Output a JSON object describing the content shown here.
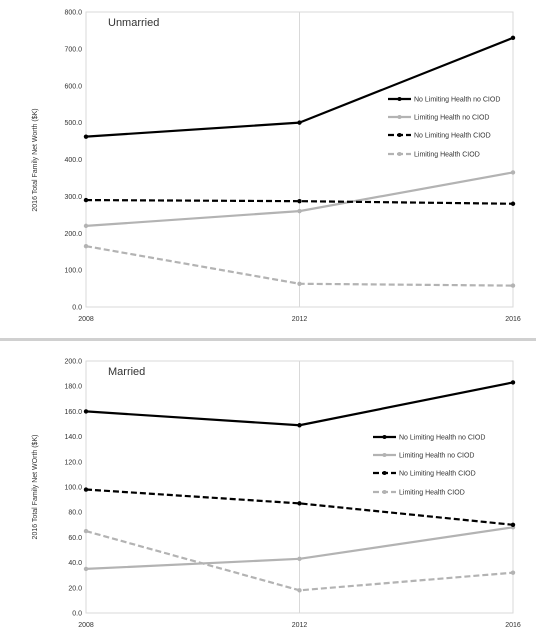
{
  "chart_data": [
    {
      "type": "line",
      "title": "Unmarried",
      "ylabel": "2016 Total Family Net Worth ($K)",
      "x": [
        "2008",
        "2012",
        "2016"
      ],
      "ylim": [
        0,
        800
      ],
      "yticks": [
        "0.0",
        "100.0",
        "200.0",
        "300.0",
        "400.0",
        "500.0",
        "600.0",
        "700.0",
        "800.0"
      ],
      "grid": "vertical",
      "legend": "right",
      "series": [
        {
          "name": "No Limiting Health no CIOD",
          "values": [
            462,
            500,
            730
          ],
          "color": "#000000",
          "dashed": false
        },
        {
          "name": "Limiting Health no CIOD",
          "values": [
            220,
            260,
            365
          ],
          "color": "#b3b3b3",
          "dashed": false
        },
        {
          "name": "No Limiting Health CIOD",
          "values": [
            290,
            287,
            280
          ],
          "color": "#000000",
          "dashed": true
        },
        {
          "name": "Limiting Health CIOD",
          "values": [
            165,
            63,
            58
          ],
          "color": "#b3b3b3",
          "dashed": true
        }
      ]
    },
    {
      "type": "line",
      "title": "Married",
      "ylabel": "2016 Total Family Net WOrth ($K)",
      "x": [
        "2008",
        "2012",
        "2016"
      ],
      "ylim": [
        0,
        200
      ],
      "yticks": [
        "0.0",
        "20.0",
        "40.0",
        "60.0",
        "80.0",
        "100.0",
        "120.0",
        "140.0",
        "160.0",
        "180.0",
        "200.0"
      ],
      "grid": "vertical",
      "legend": "right",
      "series": [
        {
          "name": "No Limiting Health no CIOD",
          "values": [
            160,
            149,
            183
          ],
          "color": "#000000",
          "dashed": false
        },
        {
          "name": "Limiting Health no CIOD",
          "values": [
            35,
            43,
            68
          ],
          "color": "#b3b3b3",
          "dashed": false
        },
        {
          "name": "No Limiting Health CIOD",
          "values": [
            98,
            87,
            70
          ],
          "color": "#000000",
          "dashed": true
        },
        {
          "name": "Limiting Health CIOD",
          "values": [
            65,
            18,
            32
          ],
          "color": "#b3b3b3",
          "dashed": true
        }
      ]
    }
  ]
}
